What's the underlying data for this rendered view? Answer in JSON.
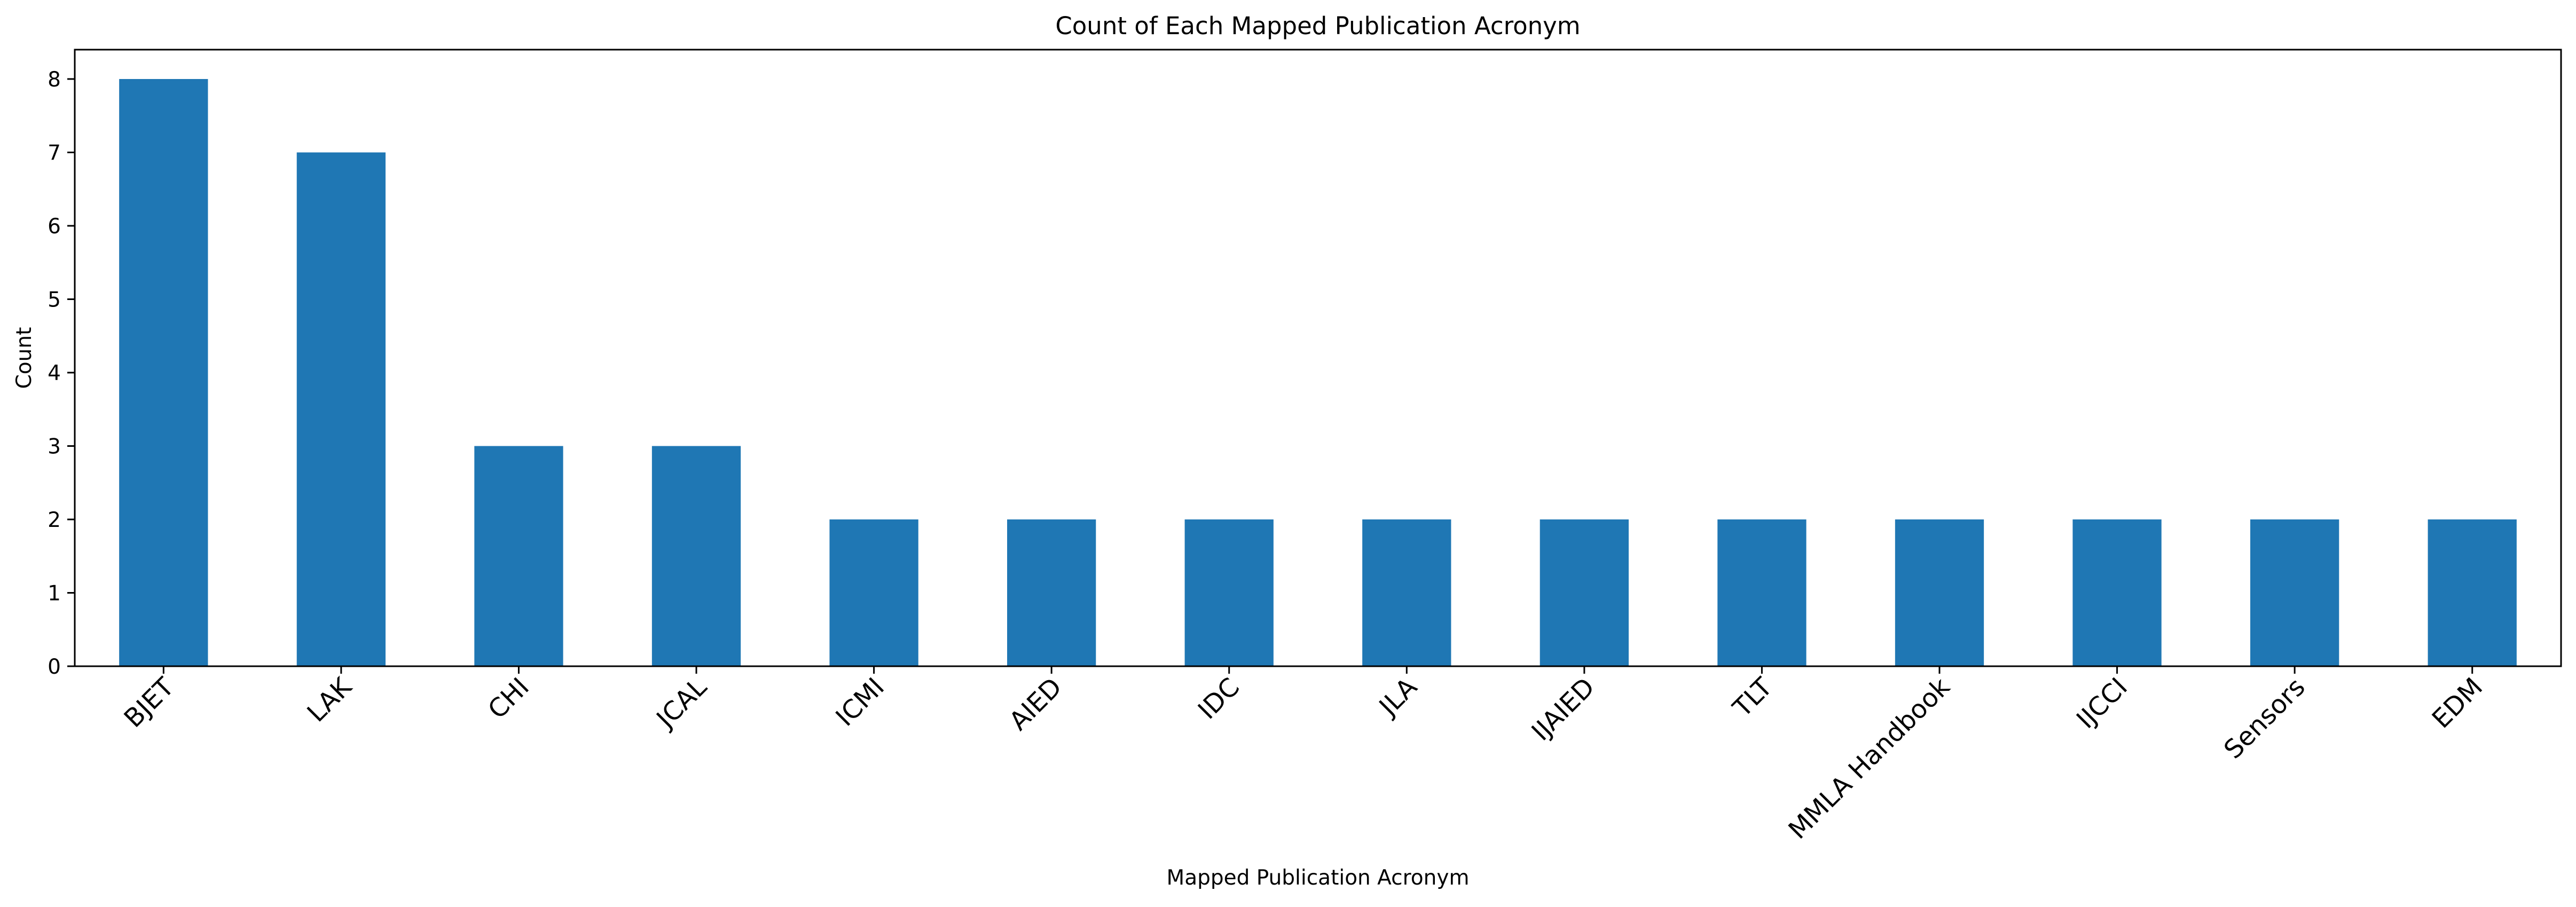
{
  "chart_data": {
    "type": "bar",
    "title": "Count of Each Mapped Publication Acronym",
    "xlabel": "Mapped Publication Acronym",
    "ylabel": "Count",
    "categories": [
      "BJET",
      "LAK",
      "CHI",
      "JCAL",
      "ICMI",
      "AIED",
      "IDC",
      "JLA",
      "IJAIED",
      "TLT",
      "MMLA Handbook",
      "IJCCI",
      "Sensors",
      "EDM"
    ],
    "values": [
      8,
      7,
      3,
      3,
      2,
      2,
      2,
      2,
      2,
      2,
      2,
      2,
      2,
      2
    ],
    "yticks": [
      0,
      1,
      2,
      3,
      4,
      5,
      6,
      7,
      8
    ],
    "ylim": [
      0,
      8.4
    ],
    "grid": false,
    "bar_color": "#1f77b4",
    "xtick_rotation": 45
  }
}
